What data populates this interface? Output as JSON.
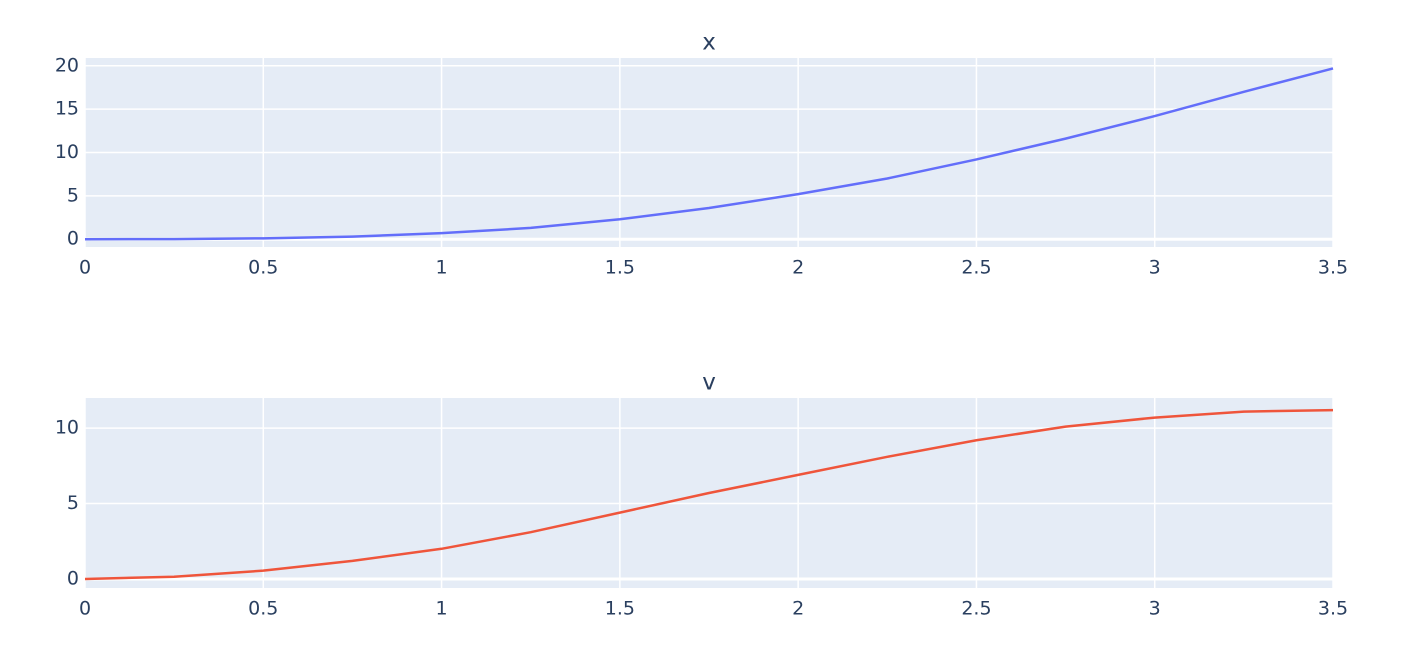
{
  "chart_data": [
    {
      "type": "line",
      "title": "x",
      "x": [
        0,
        0.25,
        0.5,
        0.75,
        1,
        1.25,
        1.5,
        1.75,
        2,
        2.25,
        2.5,
        2.75,
        3,
        3.25,
        3.5
      ],
      "values": [
        0,
        0.01,
        0.1,
        0.3,
        0.7,
        1.3,
        2.3,
        3.6,
        5.2,
        7.0,
        9.2,
        11.6,
        14.2,
        17.0,
        19.7
      ],
      "color": "#636efa",
      "xlim": [
        0,
        3.5
      ],
      "xticks": [
        0,
        0.5,
        1,
        1.5,
        2,
        2.5,
        3,
        3.5
      ],
      "ylim": [
        -0.9,
        20.9
      ],
      "yticks": [
        0,
        5,
        10,
        15,
        20
      ],
      "grid": true
    },
    {
      "type": "line",
      "title": "v",
      "x": [
        0,
        0.25,
        0.5,
        0.75,
        1,
        1.25,
        1.5,
        1.75,
        2,
        2.25,
        2.5,
        2.75,
        3,
        3.25,
        3.5
      ],
      "values": [
        0,
        0.15,
        0.55,
        1.2,
        2.0,
        3.1,
        4.4,
        5.7,
        6.9,
        8.1,
        9.2,
        10.1,
        10.7,
        11.1,
        11.2
      ],
      "color": "#ef553b",
      "xlim": [
        0,
        3.5
      ],
      "xticks": [
        0,
        0.5,
        1,
        1.5,
        2,
        2.5,
        3,
        3.5
      ],
      "ylim": [
        -0.6,
        12.0
      ],
      "yticks": [
        0,
        5,
        10
      ],
      "grid": true
    }
  ]
}
